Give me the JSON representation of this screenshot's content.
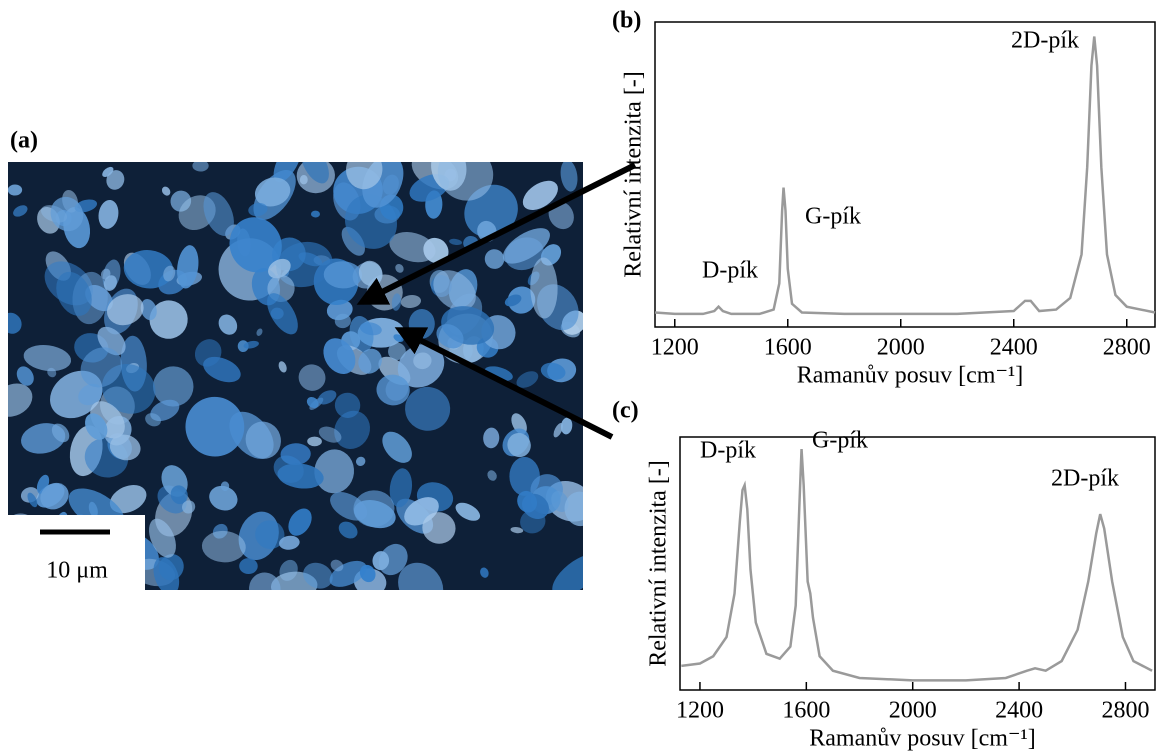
{
  "image": {
    "label": "(a)",
    "scale_bar": "10 μm"
  },
  "chart_data": [
    {
      "type": "line",
      "label": "(b)",
      "xlabel": "Ramanův posuv [cm⁻¹]",
      "ylabel": "Relativní intenzita [-]",
      "xlim": [
        1130,
        2900
      ],
      "ylim": [
        0,
        105
      ],
      "xticks": [
        1200,
        1600,
        2000,
        2400,
        2800
      ],
      "annotations": [
        "D-pík",
        "G-pík",
        "2D-pík"
      ],
      "x": [
        1130,
        1200,
        1300,
        1340,
        1355,
        1370,
        1400,
        1500,
        1550,
        1570,
        1580,
        1585,
        1592,
        1600,
        1615,
        1650,
        1800,
        2000,
        2200,
        2400,
        2440,
        2460,
        2490,
        2550,
        2600,
        2640,
        2660,
        2675,
        2685,
        2695,
        2710,
        2730,
        2760,
        2800,
        2900
      ],
      "series": [
        {
          "color": "#9a9a9a",
          "values": [
            5,
            4.5,
            4.5,
            5.5,
            7,
            5.5,
            4.5,
            4.5,
            6,
            15,
            40,
            48,
            40,
            20,
            8,
            5,
            4.5,
            4.5,
            4.5,
            5.5,
            9,
            9,
            5.5,
            6,
            10,
            25,
            55,
            90,
            100,
            90,
            55,
            25,
            11,
            7,
            5
          ]
        }
      ]
    },
    {
      "type": "line",
      "label": "(c)",
      "xlabel": "Ramanův posuv [cm⁻¹]",
      "ylabel": "Relativní intenzita [-]",
      "xlim": [
        1125,
        2911
      ],
      "ylim": [
        0,
        105
      ],
      "xticks": [
        1200,
        1600,
        2000,
        2400,
        2800
      ],
      "annotations": [
        "D-pík",
        "G-pík",
        "2D-pík"
      ],
      "x": [
        1130,
        1200,
        1250,
        1300,
        1330,
        1350,
        1360,
        1368,
        1378,
        1390,
        1410,
        1450,
        1500,
        1540,
        1560,
        1575,
        1582,
        1590,
        1605,
        1615,
        1625,
        1650,
        1700,
        1800,
        2000,
        2200,
        2350,
        2430,
        2460,
        2500,
        2560,
        2620,
        2660,
        2690,
        2705,
        2720,
        2750,
        2790,
        2830,
        2900
      ],
      "series": [
        {
          "color": "#9a9a9a",
          "values": [
            10,
            11,
            14,
            22,
            40,
            70,
            83,
            85,
            75,
            50,
            28,
            15,
            13,
            18,
            35,
            80,
            100,
            85,
            45,
            40,
            30,
            14,
            8,
            5,
            4,
            4,
            5,
            8,
            9,
            8,
            12,
            25,
            45,
            65,
            73,
            67,
            45,
            22,
            12,
            8
          ]
        }
      ]
    }
  ]
}
